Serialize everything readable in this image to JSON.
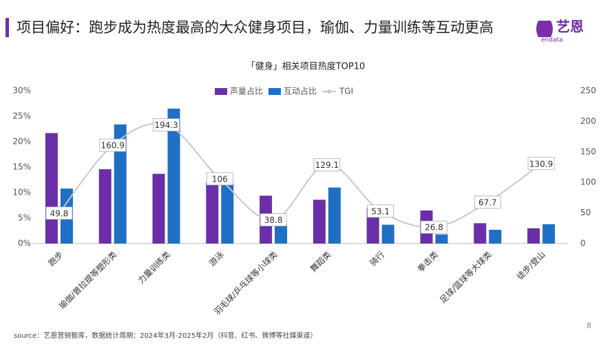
{
  "header": {
    "title": "项目偏好：跑步成为热度最高的大众健身项目，瑜伽、力量训练等互动更高"
  },
  "logo": {
    "name": "艺恩",
    "sub": "endata"
  },
  "chart_data": {
    "type": "bar",
    "title": "「健身」相关项目热度TOP10",
    "categories": [
      "跑步",
      "瑜伽/普拉提等塑形类",
      "力量训练类",
      "游泳",
      "羽毛球/乒乓球等小球类",
      "舞蹈类",
      "骑行",
      "拳击类",
      "足球/篮球等大球类",
      "徒步/登山"
    ],
    "series": [
      {
        "name": "声量占比",
        "color": "#6a2fa8",
        "values": [
          21.7,
          14.6,
          13.7,
          12.0,
          9.4,
          8.6,
          7.0,
          6.5,
          4.0,
          3.0
        ]
      },
      {
        "name": "互动占比",
        "color": "#1f6fc5",
        "values": [
          10.8,
          23.4,
          26.5,
          11.8,
          3.7,
          11.0,
          3.7,
          1.8,
          2.7,
          3.8
        ]
      },
      {
        "name": "TGI",
        "color": "#c8c8c8",
        "axis": "y2",
        "type": "line",
        "values": [
          49.8,
          160.9,
          194.3,
          106,
          38.8,
          129.1,
          53.1,
          26.8,
          67.7,
          130.9
        ]
      }
    ],
    "ylim": [
      0,
      30
    ],
    "yticks": [
      {
        "value": 0,
        "label": "0%"
      },
      {
        "value": 5,
        "label": "5%"
      },
      {
        "value": 10,
        "label": "10%"
      },
      {
        "value": 15,
        "label": "15%"
      },
      {
        "value": 20,
        "label": "20%"
      },
      {
        "value": 25,
        "label": "25%"
      },
      {
        "value": 30,
        "label": "30%"
      }
    ],
    "y2lim": [
      0,
      250
    ],
    "y2ticks": [
      0,
      50,
      100,
      150,
      200,
      250
    ],
    "legend": "top"
  },
  "footer": {
    "source": "source：艺恩营销智库，数据统计周期：2024年3月-2025年2月（抖音、红书、微博等社媒渠道）",
    "page": "8"
  }
}
